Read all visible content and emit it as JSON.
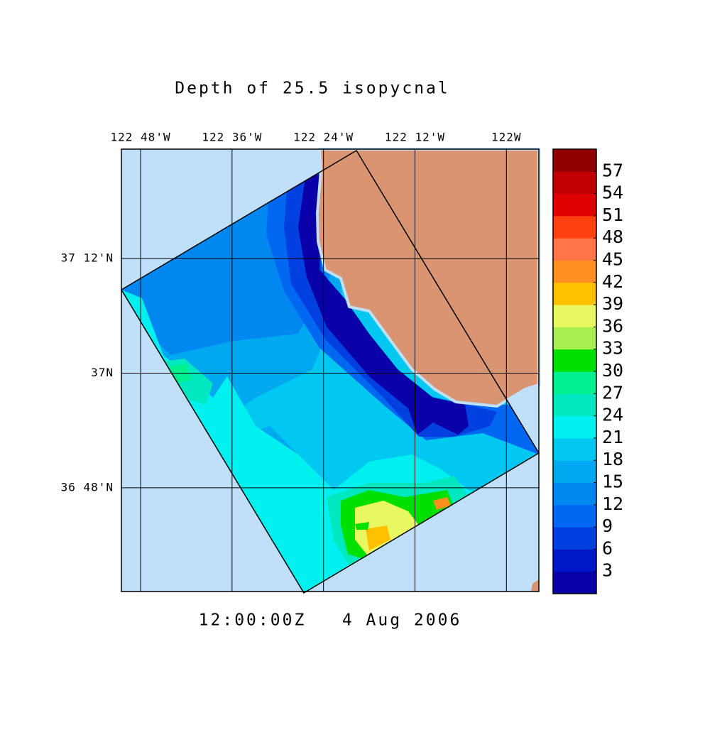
{
  "chart_data": {
    "type": "contour",
    "title": "Depth of 25.5 isopycnal",
    "annotation": "12:00:00Z   4 Aug 2006",
    "xlim": [
      -122.842,
      -121.929
    ],
    "xticks": [
      {
        "value": -122.8,
        "label": "122 48'W"
      },
      {
        "value": -122.6,
        "label": "122 36'W"
      },
      {
        "value": -122.4,
        "label": "122 24'W"
      },
      {
        "value": -122.2,
        "label": "122 12'W"
      },
      {
        "value": -122.0,
        "label": "122W"
      }
    ],
    "ylim": [
      36.619,
      37.391
    ],
    "yticks": [
      {
        "value": 36.8,
        "label": "36 48'N"
      },
      {
        "value": 37.0,
        "label": "37N"
      },
      {
        "value": 37.2,
        "label": "37 12'N"
      }
    ],
    "grid": true,
    "ocean_color": "#c0e0fa",
    "land_color": "#d99572",
    "colorbar": {
      "lim": [
        0,
        60
      ],
      "ticks": [
        3,
        6,
        9,
        12,
        15,
        18,
        21,
        24,
        27,
        30,
        33,
        36,
        39,
        42,
        45,
        48,
        51,
        54,
        57
      ],
      "colors": [
        "#0a00a8",
        "#0018c8",
        "#0040e0",
        "#0068f0",
        "#0088f0",
        "#00a8f0",
        "#00c8f0",
        "#00f0f0",
        "#00e8c0",
        "#00f090",
        "#00e000",
        "#a8f050",
        "#e8f860",
        "#ffc000",
        "#ff9020",
        "#ff7448",
        "#ff4010",
        "#e00000",
        "#c00000",
        "#900000"
      ]
    }
  }
}
